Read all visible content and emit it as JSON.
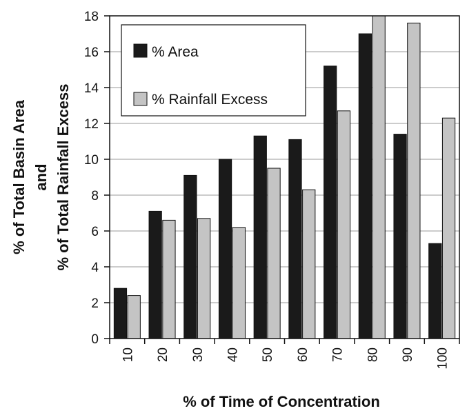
{
  "chart_data": {
    "type": "bar",
    "categories": [
      "10",
      "20",
      "30",
      "40",
      "50",
      "60",
      "70",
      "80",
      "90",
      "100"
    ],
    "series": [
      {
        "name": "% Area",
        "color": "#1a1a1a",
        "values": [
          2.8,
          7.1,
          9.1,
          10.0,
          11.3,
          11.1,
          15.2,
          17.0,
          11.4,
          5.3
        ]
      },
      {
        "name": "% Rainfall Excess",
        "color": "#c4c4c4",
        "values": [
          2.4,
          6.6,
          6.7,
          6.2,
          9.5,
          8.3,
          12.7,
          18.0,
          17.6,
          12.3
        ]
      }
    ],
    "title": "",
    "xlabel": "% of Time of Concentration",
    "ylabel": [
      "% of Total Basin Area",
      "and",
      "% of Total Rainfall Excess"
    ],
    "ylim": [
      0,
      18
    ],
    "yticks": [
      0,
      2,
      4,
      6,
      8,
      10,
      12,
      14,
      16,
      18
    ],
    "grid": "horizontal",
    "legend_position": "top-left"
  }
}
